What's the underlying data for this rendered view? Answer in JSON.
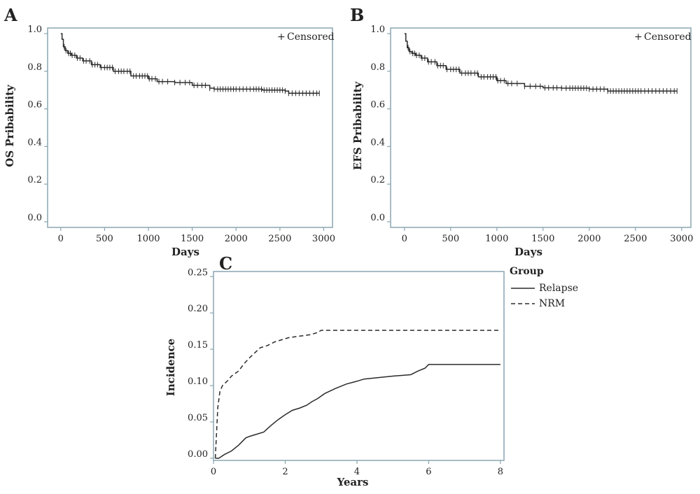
{
  "colors": {
    "frame": "#8aa6b0",
    "curve": "#2b2b2b",
    "background": "#ffffff"
  },
  "chart_data": [
    {
      "id": "A",
      "panel_letter": "A",
      "type": "line",
      "xlabel": "Days",
      "ylabel": "OS Pribability",
      "xlim": [
        -150,
        3100
      ],
      "ylim": [
        -0.03,
        1.03
      ],
      "xticks": [
        0,
        500,
        1000,
        1500,
        2000,
        2500,
        3000
      ],
      "yticks": [
        0.0,
        0.2,
        0.4,
        0.6,
        0.8,
        1.0
      ],
      "ytick_labels": [
        "0.0",
        "0.2",
        "0.4",
        "0.6",
        "0.8",
        "1.0"
      ],
      "legend": {
        "symbol": "+",
        "label": "Censored",
        "position": "top-right"
      },
      "series": [
        {
          "style": "step-solid",
          "points": [
            [
              0,
              1.0
            ],
            [
              15,
              0.97
            ],
            [
              30,
              0.93
            ],
            [
              50,
              0.91
            ],
            [
              80,
              0.895
            ],
            [
              120,
              0.885
            ],
            [
              180,
              0.87
            ],
            [
              250,
              0.855
            ],
            [
              350,
              0.835
            ],
            [
              450,
              0.82
            ],
            [
              600,
              0.8
            ],
            [
              800,
              0.775
            ],
            [
              1000,
              0.76
            ],
            [
              1100,
              0.745
            ],
            [
              1300,
              0.74
            ],
            [
              1500,
              0.725
            ],
            [
              1700,
              0.71
            ],
            [
              1750,
              0.705
            ],
            [
              2000,
              0.705
            ],
            [
              2300,
              0.7
            ],
            [
              2560,
              0.695
            ],
            [
              2600,
              0.683
            ],
            [
              2950,
              0.683
            ]
          ],
          "censored_x": [
            40,
            60,
            90,
            110,
            130,
            160,
            190,
            220,
            260,
            290,
            330,
            360,
            390,
            420,
            460,
            500,
            530,
            560,
            590,
            620,
            660,
            690,
            720,
            760,
            790,
            830,
            860,
            900,
            930,
            960,
            990,
            1010,
            1040,
            1080,
            1120,
            1160,
            1220,
            1300,
            1360,
            1420,
            1470,
            1520,
            1560,
            1610,
            1650,
            1700,
            1750,
            1790,
            1820,
            1850,
            1880,
            1910,
            1940,
            1970,
            2000,
            2040,
            2080,
            2120,
            2160,
            2200,
            2230,
            2260,
            2290,
            2320,
            2350,
            2380,
            2410,
            2440,
            2470,
            2500,
            2530,
            2560,
            2600,
            2640,
            2680,
            2720,
            2760,
            2800,
            2840,
            2880,
            2920,
            2950
          ]
        }
      ]
    },
    {
      "id": "B",
      "panel_letter": "B",
      "type": "line",
      "xlabel": "Days",
      "ylabel": "EFS Pribability",
      "xlim": [
        -150,
        3100
      ],
      "ylim": [
        -0.03,
        1.03
      ],
      "xticks": [
        0,
        500,
        1000,
        1500,
        2000,
        2500,
        3000
      ],
      "yticks": [
        0.0,
        0.2,
        0.4,
        0.6,
        0.8,
        1.0
      ],
      "ytick_labels": [
        "0.0",
        "0.2",
        "0.4",
        "0.6",
        "0.8",
        "1.0"
      ],
      "legend": {
        "symbol": "+",
        "label": "Censored",
        "position": "top-right"
      },
      "series": [
        {
          "style": "step-solid",
          "points": [
            [
              0,
              1.0
            ],
            [
              15,
              0.96
            ],
            [
              30,
              0.925
            ],
            [
              50,
              0.905
            ],
            [
              80,
              0.895
            ],
            [
              120,
              0.885
            ],
            [
              180,
              0.87
            ],
            [
              250,
              0.85
            ],
            [
              350,
              0.83
            ],
            [
              450,
              0.81
            ],
            [
              600,
              0.79
            ],
            [
              800,
              0.77
            ],
            [
              1000,
              0.75
            ],
            [
              1100,
              0.735
            ],
            [
              1300,
              0.72
            ],
            [
              1500,
              0.712
            ],
            [
              1700,
              0.71
            ],
            [
              2000,
              0.705
            ],
            [
              2200,
              0.695
            ],
            [
              2950,
              0.695
            ]
          ],
          "censored_x": [
            40,
            60,
            90,
            110,
            130,
            160,
            190,
            220,
            260,
            290,
            330,
            360,
            390,
            420,
            460,
            500,
            530,
            560,
            590,
            620,
            660,
            690,
            720,
            760,
            790,
            830,
            860,
            900,
            930,
            960,
            990,
            1010,
            1040,
            1080,
            1120,
            1160,
            1220,
            1300,
            1360,
            1420,
            1470,
            1520,
            1560,
            1610,
            1650,
            1700,
            1750,
            1790,
            1820,
            1850,
            1880,
            1910,
            1940,
            1970,
            2000,
            2040,
            2080,
            2120,
            2160,
            2200,
            2230,
            2260,
            2290,
            2320,
            2350,
            2380,
            2410,
            2440,
            2470,
            2500,
            2530,
            2560,
            2600,
            2640,
            2680,
            2720,
            2760,
            2800,
            2840,
            2880,
            2920,
            2950
          ]
        }
      ]
    },
    {
      "id": "C",
      "panel_letter": "C",
      "type": "line",
      "xlabel": "Years",
      "ylabel": "Incidence",
      "xlim": [
        0,
        8.1
      ],
      "ylim": [
        -0.003,
        0.257
      ],
      "xticks": [
        0,
        2,
        4,
        6,
        8
      ],
      "yticks": [
        0.0,
        0.05,
        0.1,
        0.15,
        0.2,
        0.25
      ],
      "ytick_labels": [
        "0.00",
        "0.05",
        "0.10",
        "0.15",
        "0.20",
        "0.25"
      ],
      "legend": {
        "title": "Group",
        "position": "outside-right-top"
      },
      "series": [
        {
          "name": "Relapse",
          "style": "solid",
          "points": [
            [
              0.05,
              0.0
            ],
            [
              0.15,
              0.0
            ],
            [
              0.3,
              0.005
            ],
            [
              0.5,
              0.01
            ],
            [
              0.7,
              0.018
            ],
            [
              0.9,
              0.028
            ],
            [
              1.0,
              0.03
            ],
            [
              1.2,
              0.033
            ],
            [
              1.4,
              0.036
            ],
            [
              1.6,
              0.045
            ],
            [
              1.8,
              0.053
            ],
            [
              2.0,
              0.06
            ],
            [
              2.2,
              0.066
            ],
            [
              2.4,
              0.069
            ],
            [
              2.6,
              0.073
            ],
            [
              2.75,
              0.078
            ],
            [
              2.9,
              0.082
            ],
            [
              3.1,
              0.089
            ],
            [
              3.4,
              0.096
            ],
            [
              3.7,
              0.102
            ],
            [
              4.0,
              0.106
            ],
            [
              4.2,
              0.109
            ],
            [
              4.6,
              0.111
            ],
            [
              5.0,
              0.113
            ],
            [
              5.5,
              0.115
            ],
            [
              5.7,
              0.12
            ],
            [
              5.9,
              0.124
            ],
            [
              6.0,
              0.129
            ],
            [
              8.0,
              0.129
            ]
          ]
        },
        {
          "name": "NRM",
          "style": "dashed",
          "points": [
            [
              0.05,
              0.0
            ],
            [
              0.08,
              0.03
            ],
            [
              0.12,
              0.07
            ],
            [
              0.18,
              0.092
            ],
            [
              0.25,
              0.1
            ],
            [
              0.4,
              0.107
            ],
            [
              0.5,
              0.113
            ],
            [
              0.7,
              0.12
            ],
            [
              0.85,
              0.13
            ],
            [
              1.0,
              0.138
            ],
            [
              1.15,
              0.145
            ],
            [
              1.3,
              0.152
            ],
            [
              1.5,
              0.155
            ],
            [
              1.7,
              0.16
            ],
            [
              1.9,
              0.163
            ],
            [
              2.1,
              0.166
            ],
            [
              2.4,
              0.168
            ],
            [
              2.7,
              0.17
            ],
            [
              2.9,
              0.173
            ],
            [
              3.0,
              0.176
            ],
            [
              8.0,
              0.176
            ]
          ]
        }
      ]
    }
  ]
}
